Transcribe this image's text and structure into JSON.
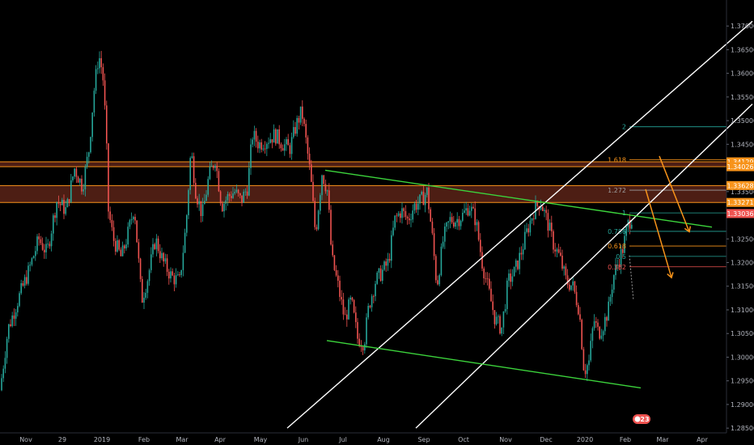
{
  "chart_data": {
    "type": "candlestick",
    "x_axis_labels": [
      "Nov",
      "29",
      "2019",
      "Feb",
      "Mar",
      "Apr",
      "May",
      "Jun",
      "Jul",
      "Aug",
      "Sep",
      "Oct",
      "Nov",
      "Dec",
      "2020",
      "Feb",
      "Mar",
      "Apr"
    ],
    "y_axis_ticks": [
      "1.37000",
      "1.36500",
      "1.36000",
      "1.35500",
      "1.35000",
      "1.34500",
      "1.34000",
      "1.33500",
      "1.33000",
      "1.32500",
      "1.32000",
      "1.31500",
      "1.31000",
      "1.30500",
      "1.30000",
      "1.29500",
      "1.29000",
      "1.28500"
    ],
    "ylim": [
      1.284,
      1.3755
    ],
    "price_tags": [
      {
        "label": "1.34129",
        "value": 1.34129,
        "color": "#f7931a"
      },
      {
        "label": "1.34026",
        "value": 1.34026,
        "color": "#f7931a"
      },
      {
        "label": "1.33628",
        "value": 1.33628,
        "color": "#f7931a"
      },
      {
        "label": "1.33271",
        "value": 1.33271,
        "color": "#f7931a"
      },
      {
        "label": "1.33036",
        "value": 1.33036,
        "color": "#ef5350"
      }
    ],
    "resistance_zones": [
      {
        "from": 1.34026,
        "to": 1.34129
      },
      {
        "from": 1.33271,
        "to": 1.33628
      }
    ],
    "fib_levels": [
      {
        "label": "2",
        "value": 1.3487,
        "color": "#26a69a"
      },
      {
        "label": "1.618",
        "value": 1.34175,
        "color": "#f7931a"
      },
      {
        "label": "1.272",
        "value": 1.3353,
        "color": "#9e9e9e"
      },
      {
        "label": "1",
        "value": 1.3305,
        "color": "#26a69a"
      },
      {
        "label": "0.786",
        "value": 1.3266,
        "color": "#26a69a"
      },
      {
        "label": "0.618",
        "value": 1.3235,
        "color": "#f7931a"
      },
      {
        "label": "0.5",
        "value": 1.3213,
        "color": "#26a69a"
      },
      {
        "label": "0.382",
        "value": 1.3191,
        "color": "#ef5350"
      }
    ],
    "price_path": [
      [
        0,
        1.293
      ],
      [
        10,
        1.306
      ],
      [
        22,
        1.312
      ],
      [
        35,
        1.318
      ],
      [
        48,
        1.325
      ],
      [
        58,
        1.322
      ],
      [
        70,
        1.333
      ],
      [
        82,
        1.331
      ],
      [
        92,
        1.34
      ],
      [
        102,
        1.336
      ],
      [
        110,
        1.344
      ],
      [
        116,
        1.356
      ],
      [
        122,
        1.364
      ],
      [
        127,
        1.36
      ],
      [
        131,
        1.348
      ],
      [
        134,
        1.331
      ],
      [
        140,
        1.325
      ],
      [
        150,
        1.321
      ],
      [
        158,
        1.326
      ],
      [
        166,
        1.332
      ],
      [
        175,
        1.312
      ],
      [
        183,
        1.317
      ],
      [
        192,
        1.325
      ],
      [
        202,
        1.32
      ],
      [
        212,
        1.317
      ],
      [
        222,
        1.316
      ],
      [
        230,
        1.328
      ],
      [
        236,
        1.344
      ],
      [
        242,
        1.335
      ],
      [
        250,
        1.33
      ],
      [
        258,
        1.338
      ],
      [
        266,
        1.342
      ],
      [
        274,
        1.332
      ],
      [
        282,
        1.334
      ],
      [
        290,
        1.335
      ],
      [
        298,
        1.333
      ],
      [
        306,
        1.336
      ],
      [
        312,
        1.347
      ],
      [
        320,
        1.345
      ],
      [
        330,
        1.346
      ],
      [
        340,
        1.347
      ],
      [
        350,
        1.345
      ],
      [
        358,
        1.344
      ],
      [
        366,
        1.349
      ],
      [
        373,
        1.352
      ],
      [
        378,
        1.346
      ],
      [
        384,
        1.338
      ],
      [
        390,
        1.326
      ],
      [
        398,
        1.339
      ],
      [
        405,
        1.335
      ],
      [
        410,
        1.321
      ],
      [
        418,
        1.315
      ],
      [
        426,
        1.308
      ],
      [
        434,
        1.312
      ],
      [
        442,
        1.304
      ],
      [
        450,
        1.303
      ],
      [
        456,
        1.311
      ],
      [
        464,
        1.316
      ],
      [
        472,
        1.318
      ],
      [
        480,
        1.32
      ],
      [
        488,
        1.329
      ],
      [
        496,
        1.331
      ],
      [
        504,
        1.329
      ],
      [
        512,
        1.332
      ],
      [
        520,
        1.333
      ],
      [
        528,
        1.335
      ],
      [
        534,
        1.326
      ],
      [
        540,
        1.315
      ],
      [
        548,
        1.325
      ],
      [
        556,
        1.329
      ],
      [
        564,
        1.329
      ],
      [
        572,
        1.33
      ],
      [
        580,
        1.332
      ],
      [
        588,
        1.329
      ],
      [
        596,
        1.32
      ],
      [
        604,
        1.314
      ],
      [
        612,
        1.308
      ],
      [
        620,
        1.306
      ],
      [
        628,
        1.316
      ],
      [
        636,
        1.318
      ],
      [
        644,
        1.322
      ],
      [
        652,
        1.327
      ],
      [
        660,
        1.331
      ],
      [
        668,
        1.333
      ],
      [
        676,
        1.329
      ],
      [
        684,
        1.324
      ],
      [
        692,
        1.321
      ],
      [
        700,
        1.316
      ],
      [
        708,
        1.315
      ],
      [
        716,
        1.31
      ],
      [
        722,
        1.297
      ],
      [
        728,
        1.299
      ],
      [
        734,
        1.308
      ],
      [
        740,
        1.305
      ],
      [
        746,
        1.307
      ],
      [
        752,
        1.31
      ],
      [
        758,
        1.317
      ],
      [
        764,
        1.32
      ],
      [
        770,
        1.323
      ],
      [
        776,
        1.328
      ],
      [
        782,
        1.33
      ]
    ],
    "trendlines": [
      {
        "name": "",
        "color": "#ffffff",
        "from": [
          355,
          1.285
        ],
        "to": [
          930,
          1.371
        ]
      },
      {
        "name": "",
        "color": "#ffffff",
        "from": [
          514,
          1.285
        ],
        "to": [
          930,
          1.3535
        ]
      },
      {
        "name": "",
        "color": "#3cd43c",
        "from": [
          402,
          1.3395
        ],
        "to": [
          880,
          1.3275
        ]
      },
      {
        "name": "",
        "color": "#3cd43c",
        "from": [
          404,
          1.3035
        ],
        "to": [
          792,
          1.2935
        ]
      }
    ],
    "projection_arrows": [
      {
        "color": "#f7931a",
        "points": [
          [
            815,
            1.3425
          ],
          [
            852,
            1.3265
          ]
        ]
      },
      {
        "color": "#f7931a",
        "points": [
          [
            798,
            1.3355
          ],
          [
            830,
            1.3168
          ]
        ]
      }
    ],
    "badge": "23"
  }
}
